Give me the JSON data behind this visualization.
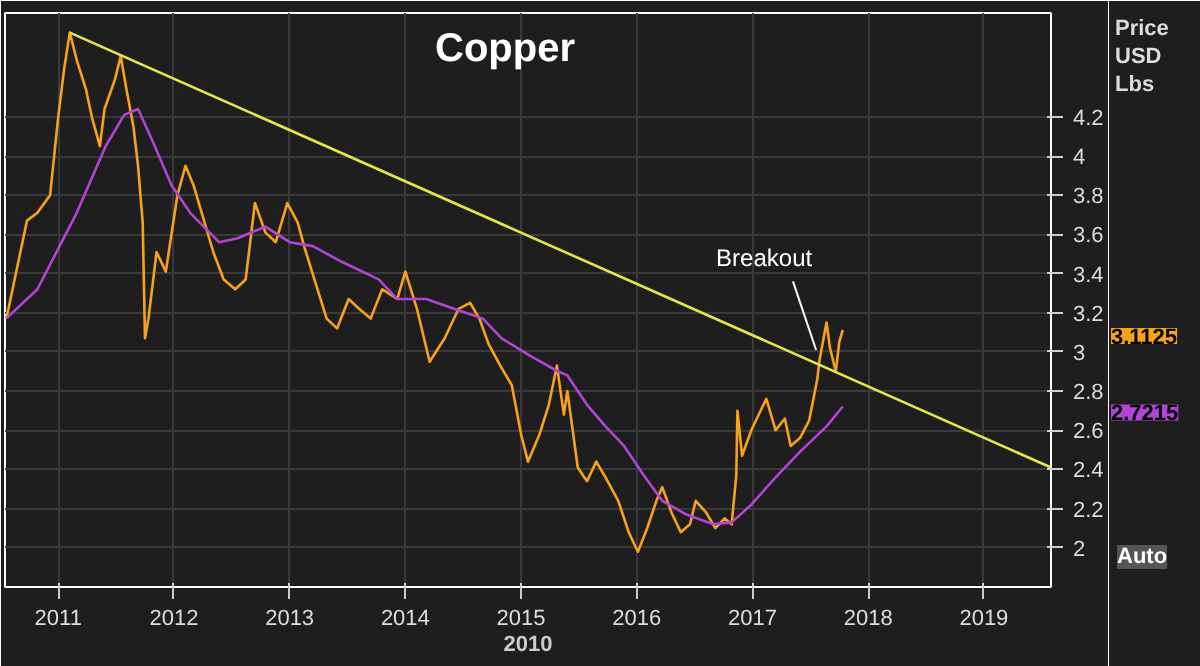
{
  "chart_data": {
    "type": "line",
    "title": "Copper",
    "xlabel": "2010",
    "ylabel": "Price USD Lbs",
    "xlim": [
      2010.54,
      2019.58
    ],
    "ylim": [
      1.8,
      4.73
    ],
    "xticks": [
      {
        "value": 2011,
        "label": "2011"
      },
      {
        "value": 2012,
        "label": "2012"
      },
      {
        "value": 2013,
        "label": "2013"
      },
      {
        "value": 2014,
        "label": "2014"
      },
      {
        "value": 2015,
        "label": "2015"
      },
      {
        "value": 2016,
        "label": "2016"
      },
      {
        "value": 2017,
        "label": "2017"
      },
      {
        "value": 2018,
        "label": "2018"
      },
      {
        "value": 2019,
        "label": "2019"
      }
    ],
    "yticks": [
      2,
      2.2,
      2.4,
      2.6,
      2.8,
      3,
      3.2,
      3.4,
      3.6,
      3.8,
      4,
      4.2
    ],
    "grid": true,
    "marker": "none",
    "line_style": "solid",
    "annotations": [
      {
        "text": "Breakout",
        "x": 2017.55,
        "y": 2.98
      },
      "3.1125",
      "2.7215",
      "Auto"
    ],
    "series": [
      {
        "color": "#f7a21b",
        "x": [
          2010.55,
          2010.57,
          2010.73,
          2010.82,
          2010.93,
          2011.0,
          2011.05,
          2011.1,
          2011.16,
          2011.24,
          2011.29,
          2011.36,
          2011.4,
          2011.49,
          2011.54,
          2011.59,
          2011.65,
          2011.69,
          2011.73,
          2011.75,
          2011.78,
          2011.85,
          2011.93,
          2012.03,
          2012.1,
          2012.17,
          2012.24,
          2012.34,
          2012.43,
          2012.53,
          2012.62,
          2012.7,
          2012.79,
          2012.88,
          2012.98,
          2013.07,
          2013.13,
          2013.24,
          2013.32,
          2013.41,
          2013.51,
          2013.6,
          2013.7,
          2013.8,
          2013.93,
          2014.0,
          2014.1,
          2014.21,
          2014.34,
          2014.46,
          2014.56,
          2014.64,
          2014.72,
          2014.82,
          2014.92,
          2015.0,
          2015.06,
          2015.16,
          2015.24,
          2015.31,
          2015.37,
          2015.4,
          2015.49,
          2015.57,
          2015.65,
          2015.73,
          2015.84,
          2015.93,
          2016.01,
          2016.09,
          2016.17,
          2016.22,
          2016.3,
          2016.38,
          2016.46,
          2016.51,
          2016.6,
          2016.68,
          2016.76,
          2016.82,
          2016.86,
          2016.87,
          2016.91,
          2016.99,
          2017.07,
          2017.12,
          2017.2,
          2017.28,
          2017.33,
          2017.41,
          2017.49,
          2017.56,
          2017.58,
          2017.64,
          2017.67,
          2017.72,
          2017.75,
          2017.78
        ],
        "values": [
          3.17,
          3.22,
          3.67,
          3.71,
          3.8,
          4.2,
          4.44,
          4.63,
          4.49,
          4.34,
          4.2,
          4.05,
          4.24,
          4.39,
          4.51,
          4.34,
          4.15,
          3.95,
          3.66,
          3.07,
          3.17,
          3.51,
          3.41,
          3.8,
          3.95,
          3.85,
          3.71,
          3.51,
          3.37,
          3.32,
          3.37,
          3.76,
          3.61,
          3.56,
          3.76,
          3.66,
          3.53,
          3.32,
          3.17,
          3.12,
          3.27,
          3.22,
          3.17,
          3.32,
          3.27,
          3.41,
          3.22,
          2.95,
          3.07,
          3.22,
          3.25,
          3.17,
          3.04,
          2.93,
          2.83,
          2.58,
          2.44,
          2.58,
          2.73,
          2.93,
          2.68,
          2.8,
          2.41,
          2.34,
          2.44,
          2.36,
          2.24,
          2.08,
          1.98,
          2.1,
          2.24,
          2.31,
          2.18,
          2.08,
          2.12,
          2.24,
          2.18,
          2.1,
          2.15,
          2.12,
          2.37,
          2.7,
          2.47,
          2.6,
          2.7,
          2.76,
          2.6,
          2.66,
          2.52,
          2.56,
          2.65,
          2.86,
          2.96,
          3.15,
          3.02,
          2.9,
          3.05,
          3.1125
        ]
      },
      {
        "color": "#b344d6",
        "x": [
          2010.55,
          2010.82,
          2011.16,
          2011.41,
          2011.57,
          2011.69,
          2011.82,
          2011.98,
          2012.14,
          2012.39,
          2012.55,
          2012.79,
          2013.0,
          2013.2,
          2013.45,
          2013.77,
          2013.93,
          2014.18,
          2014.42,
          2014.67,
          2014.83,
          2015.08,
          2015.32,
          2015.4,
          2015.57,
          2015.73,
          2015.89,
          2016.06,
          2016.22,
          2016.43,
          2016.66,
          2016.82,
          2016.99,
          2017.2,
          2017.41,
          2017.64,
          2017.78
        ],
        "values": [
          3.17,
          3.32,
          3.71,
          4.05,
          4.21,
          4.24,
          4.07,
          3.85,
          3.71,
          3.56,
          3.58,
          3.64,
          3.56,
          3.54,
          3.46,
          3.37,
          3.27,
          3.27,
          3.22,
          3.17,
          3.07,
          2.98,
          2.9,
          2.88,
          2.73,
          2.62,
          2.52,
          2.37,
          2.24,
          2.17,
          2.12,
          2.13,
          2.22,
          2.36,
          2.49,
          2.62,
          2.7215
        ]
      },
      {
        "color": "#e6e64a",
        "x": [
          2011.1,
          2019.58
        ],
        "values": [
          4.63,
          2.41
        ]
      }
    ]
  }
}
